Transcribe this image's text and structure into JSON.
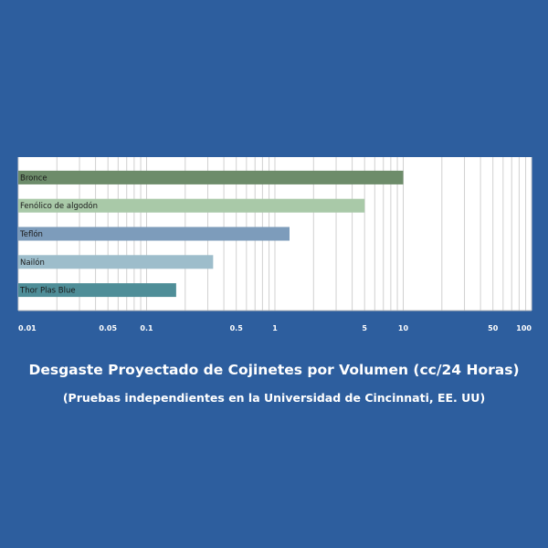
{
  "chart_data": {
    "type": "bar",
    "orientation": "horizontal",
    "title": "Desgaste Proyectado de Cojinetes por Volumen (cc/24 Horas)",
    "subtitle": "(Pruebas independientes en la Universidad de Cincinnati, EE. UU)",
    "xscale": "log",
    "xlim": [
      0.01,
      100
    ],
    "xticks": [
      0.01,
      0.05,
      0.1,
      0.5,
      1,
      5,
      10,
      50,
      100
    ],
    "xtick_labels": [
      "0.01",
      "0.05",
      "0.1",
      "0.5",
      "1",
      "5",
      "10",
      "50",
      "100"
    ],
    "grid": true,
    "categories": [
      "Bronce",
      "Fenólico de algodón",
      "Teflón",
      "Nailón",
      "Thor Plas Blue"
    ],
    "values": [
      10,
      5,
      1.3,
      0.33,
      0.17
    ],
    "colors": [
      "#6d8c6a",
      "#a9c9a8",
      "#7d9cbb",
      "#9dbdcb",
      "#4f8e98"
    ]
  },
  "colors": {
    "background": "#2d5e9e",
    "plot_background": "#ffffff",
    "grid": "#d0d0d0"
  }
}
